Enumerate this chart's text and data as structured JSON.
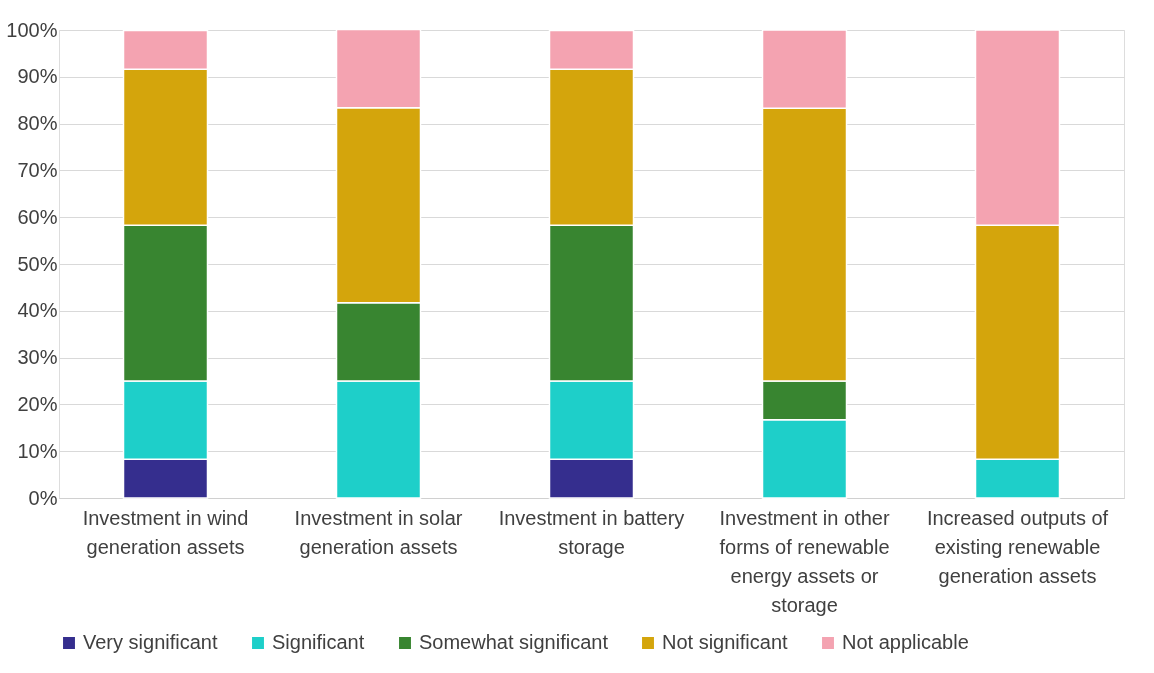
{
  "chart_data": {
    "type": "bar",
    "stacked": true,
    "categories": [
      "Investment in wind generation assets",
      "Investment in solar generation assets",
      "Investment in battery storage",
      "Investment in other forms of renewable energy assets or storage",
      "Increased outputs of existing renewable generation assets"
    ],
    "series": [
      {
        "name": "Very significant",
        "color": "#352e8e",
        "values": [
          8.3,
          0,
          8.3,
          0,
          0
        ]
      },
      {
        "name": "Significant",
        "color": "#1ecfc9",
        "values": [
          16.7,
          25,
          16.7,
          16.7,
          8.3
        ]
      },
      {
        "name": "Somewhat significant",
        "color": "#388530",
        "values": [
          33.3,
          16.7,
          33.3,
          8.3,
          0
        ]
      },
      {
        "name": "Not significant",
        "color": "#d4a50c",
        "values": [
          33.3,
          41.7,
          33.3,
          58.3,
          50
        ]
      },
      {
        "name": "Not applicable",
        "color": "#f4a3b1",
        "values": [
          8.3,
          16.7,
          8.3,
          16.7,
          41.7
        ]
      }
    ],
    "ylim": [
      0,
      100
    ],
    "yticks": [
      {
        "value": 0,
        "label": "0%"
      },
      {
        "value": 10,
        "label": "10%"
      },
      {
        "value": 20,
        "label": "20%"
      },
      {
        "value": 30,
        "label": "30%"
      },
      {
        "value": 40,
        "label": "40%"
      },
      {
        "value": 50,
        "label": "50%"
      },
      {
        "value": 60,
        "label": "60%"
      },
      {
        "value": 70,
        "label": "70%"
      },
      {
        "value": 80,
        "label": "80%"
      },
      {
        "value": 90,
        "label": "90%"
      },
      {
        "value": 100,
        "label": "100%"
      }
    ],
    "grid": "y",
    "legend": "bottom"
  }
}
